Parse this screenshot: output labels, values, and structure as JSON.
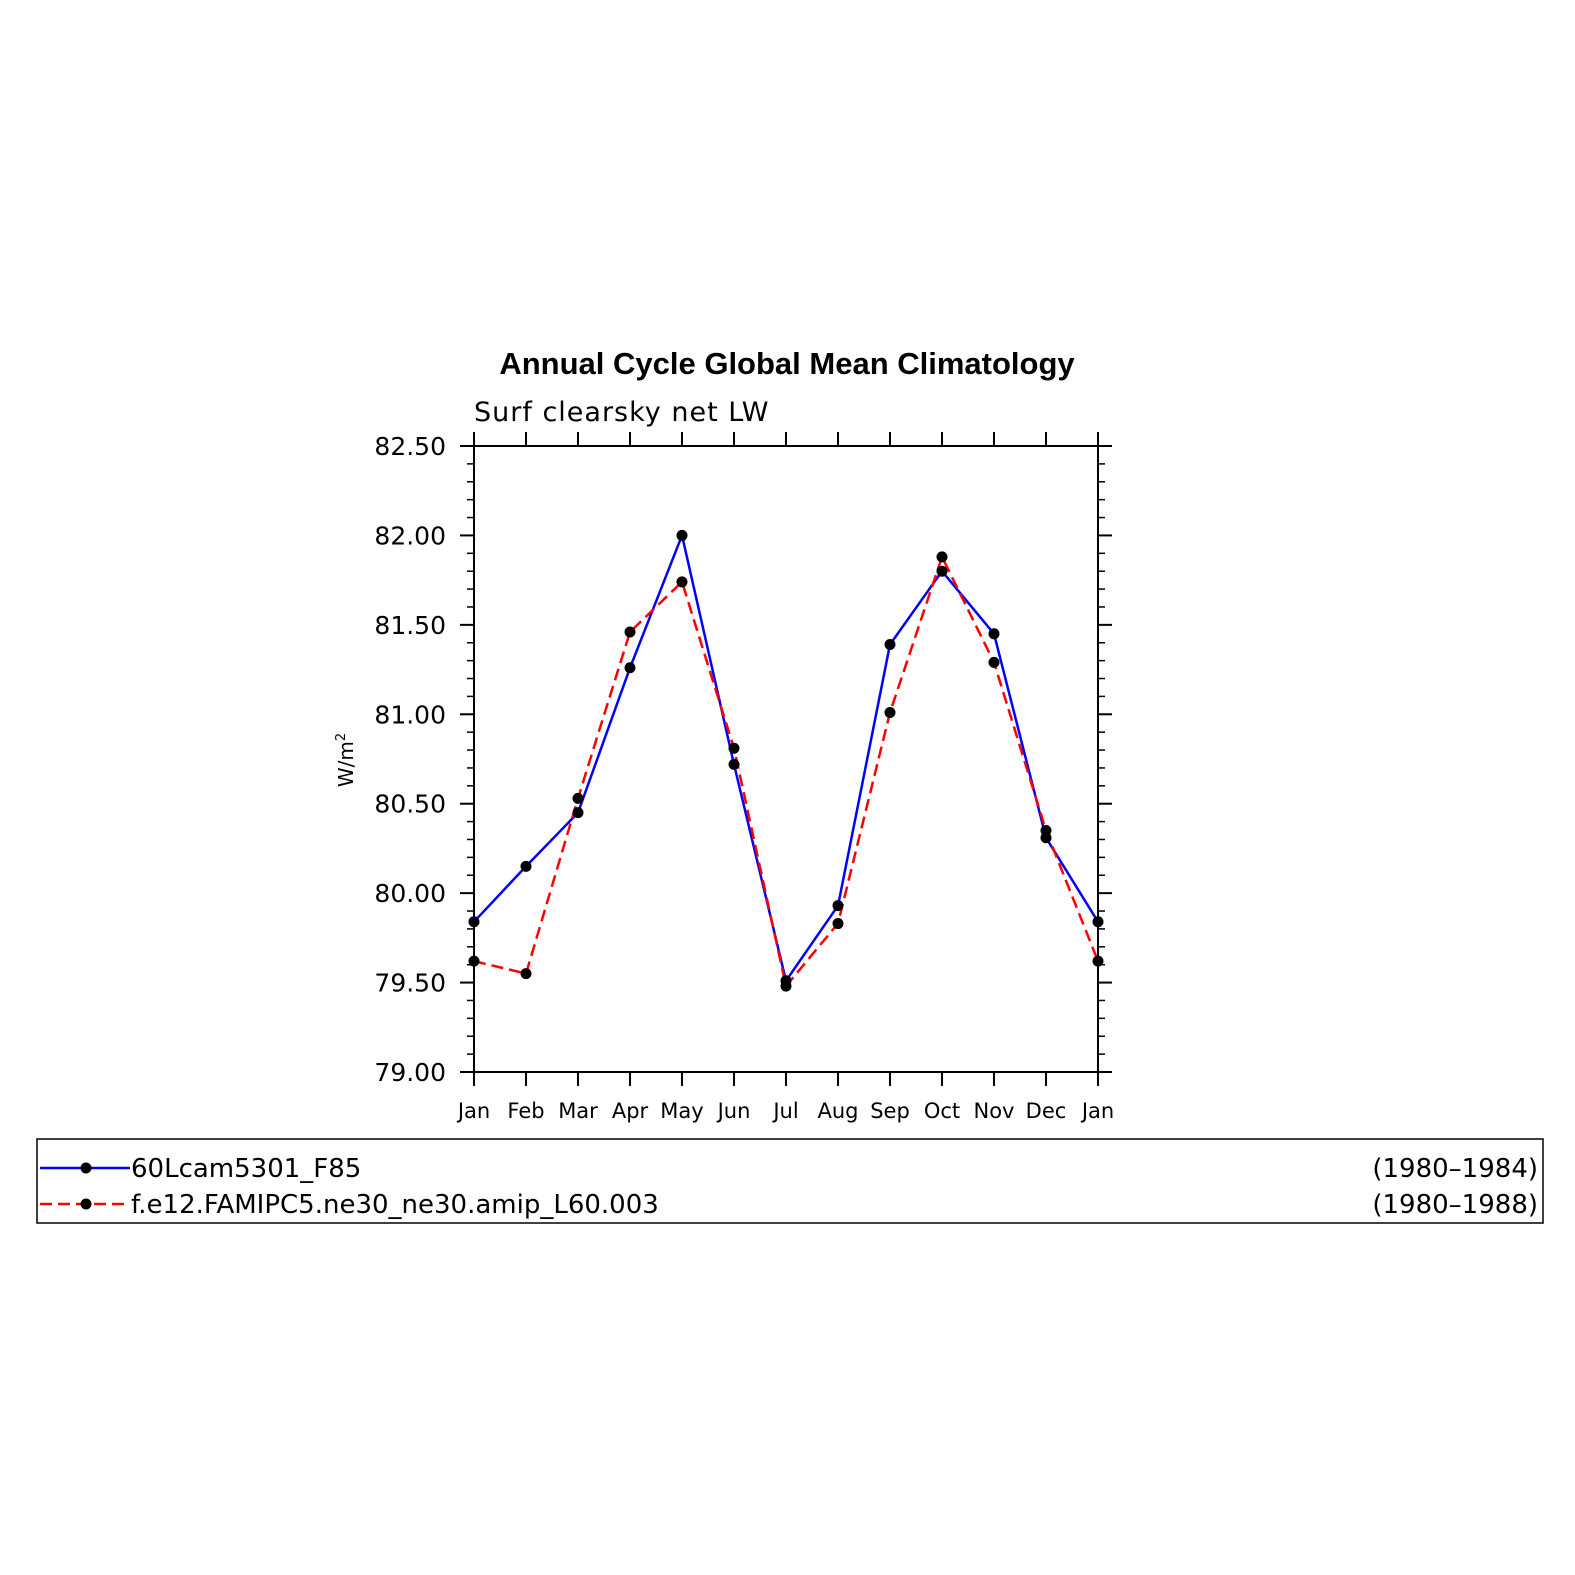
{
  "chart_data": {
    "type": "line",
    "title": "Annual Cycle Global Mean Climatology",
    "subtitle": "Surf clearsky net LW",
    "ylabel": "W/m",
    "ylabel_superscript": "2",
    "xlabel": "",
    "categories": [
      "Jan",
      "Feb",
      "Mar",
      "Apr",
      "May",
      "Jun",
      "Jul",
      "Aug",
      "Sep",
      "Oct",
      "Nov",
      "Dec",
      "Jan"
    ],
    "ylim": [
      79.0,
      82.5
    ],
    "yticks": [
      "79.00",
      "79.50",
      "80.00",
      "80.50",
      "81.00",
      "81.50",
      "82.00",
      "82.50"
    ],
    "series": [
      {
        "name": "60Lcam5301_F85",
        "period": "(1980–1984)",
        "color": "#0000ff",
        "style": "solid",
        "values": [
          79.84,
          80.15,
          80.45,
          81.26,
          82.0,
          80.72,
          79.51,
          79.93,
          81.39,
          81.8,
          81.45,
          80.31,
          79.84
        ]
      },
      {
        "name": "f.e12.FAMIPC5.ne30_ne30.amip_L60.003",
        "period": "(1980–1988)",
        "color": "#ff0000",
        "style": "dashed",
        "values": [
          79.62,
          79.55,
          80.53,
          81.46,
          81.74,
          80.81,
          79.48,
          79.83,
          81.01,
          81.88,
          81.29,
          80.35,
          79.62
        ]
      }
    ],
    "marker_color": "#000000",
    "grid": false,
    "legend_position": "bottom"
  }
}
